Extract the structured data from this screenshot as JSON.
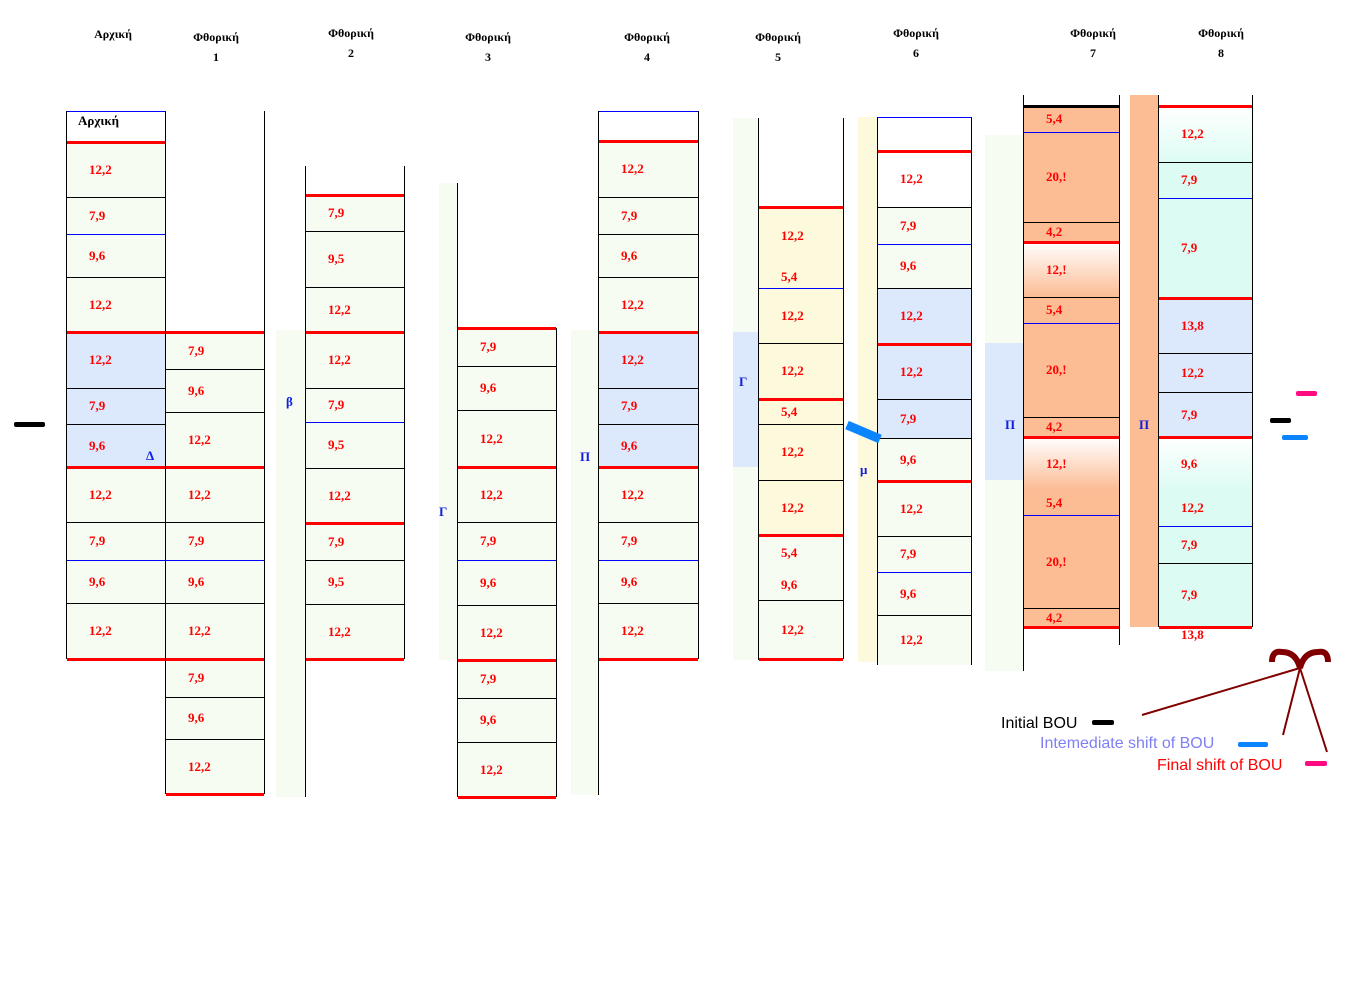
{
  "headers": [
    {
      "title": "Αρχική",
      "num": ""
    },
    {
      "title": "Φθορική",
      "num": "1"
    },
    {
      "title": "Φθορική",
      "num": "2"
    },
    {
      "title": "Φθορική",
      "num": "3"
    },
    {
      "title": "Φθορική",
      "num": "4"
    },
    {
      "title": "Φθορική",
      "num": "5"
    },
    {
      "title": "Φθορική",
      "num": "6"
    },
    {
      "title": "Φθορική",
      "num": "7"
    },
    {
      "title": "Φθορική",
      "num": "8"
    }
  ],
  "initial_column_label": "Αρχική",
  "columns": [
    {
      "name": "arxiki",
      "cells": [
        "12,2",
        "7,9",
        "9,6",
        "12,2",
        "12,2",
        "7,9",
        "9,6",
        "12,2",
        "7,9",
        "9,6",
        "12,2"
      ]
    },
    {
      "name": "fthoriki-1",
      "cells": [
        "7,9",
        "9,6",
        "12,2",
        "12,2",
        "7,9",
        "9,6",
        "12,2",
        "7,9",
        "9,6",
        "12,2"
      ]
    },
    {
      "name": "fthoriki-2",
      "cells": [
        "7,9",
        "9,5",
        "12,2",
        "12,2",
        "7,9",
        "9,5",
        "12,2",
        "7,9",
        "9,5",
        "12,2"
      ]
    },
    {
      "name": "fthoriki-3",
      "cells": [
        "7,9",
        "9,6",
        "12,2",
        "12,2",
        "7,9",
        "9,6",
        "12,2",
        "7,9",
        "9,6",
        "12,2"
      ]
    },
    {
      "name": "fthoriki-4",
      "cells": [
        "12,2",
        "7,9",
        "9,6",
        "12,2",
        "12,2",
        "7,9",
        "9,6",
        "12,2",
        "7,9",
        "9,6",
        "12,2"
      ]
    },
    {
      "name": "fthoriki-5",
      "cells": [
        "12,2",
        "5,4",
        "12,2",
        "12,2",
        "5,4",
        "12,2",
        "12,2",
        "5,4",
        "9,6",
        "12,2"
      ]
    },
    {
      "name": "fthoriki-6",
      "cells": [
        "12,2",
        "7,9",
        "9,6",
        "12,2",
        "12,2",
        "7,9",
        "9,6",
        "12,2",
        "7,9",
        "9,6",
        "12,2"
      ]
    },
    {
      "name": "fthoriki-7",
      "cells": [
        "5,4",
        "20,!",
        "4,2",
        "12,!",
        "5,4",
        "20,!",
        "4,2",
        "12,!",
        "5,4",
        "20,!",
        "4,2"
      ]
    },
    {
      "name": "fthoriki-8",
      "cells": [
        "12,2",
        "7,9",
        "7,9",
        "13,8",
        "12,2",
        "7,9",
        "9,6",
        "12,2",
        "7,9",
        "7,9",
        "13,8"
      ]
    }
  ],
  "markers": [
    "Δ",
    "β",
    "Γ",
    "Π",
    "Γ",
    "μ",
    "Π",
    "Π"
  ],
  "colors": {
    "interval": "#ff0000",
    "diatonic_bg": "#f6fcf2",
    "shift_bg": "#dce8fb",
    "yellow_bg": "#fdf9dc",
    "orange_bg": "#fcbc94",
    "mint_bg": "#dcfcf3",
    "initial_bou": "#000000",
    "intermediate_bou": "#0a84ff",
    "final_bou": "#ff0a80",
    "brace": "#800000"
  },
  "legend": {
    "initial": "Initial BOU",
    "intermediate": "Intemediate shift of BOU",
    "final": "Final shift of BOU"
  }
}
